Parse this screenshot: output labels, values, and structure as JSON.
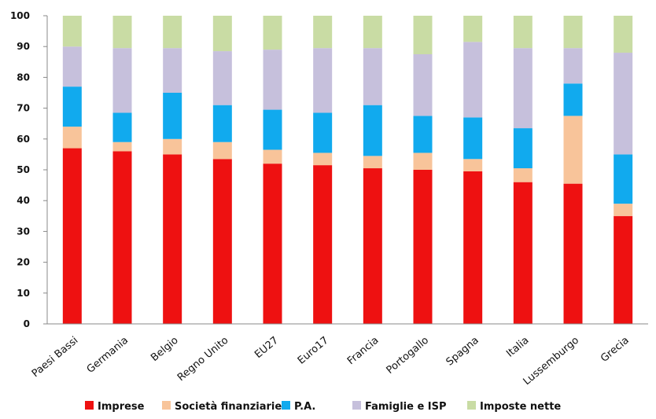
{
  "chart_data": {
    "type": "bar",
    "stacked": true,
    "ylim": [
      0,
      100
    ],
    "yticks": [
      0,
      10,
      20,
      30,
      40,
      50,
      60,
      70,
      80,
      90,
      100
    ],
    "grid": false,
    "legend_position": "bottom",
    "categories": [
      "Paesi Bassi",
      "Germania",
      "Belgio",
      "Regno Unito",
      "EU27",
      "Euro17",
      "Francia",
      "Portogallo",
      "Spagna",
      "Italia",
      "Lussemburgo",
      "Grecia"
    ],
    "series": [
      {
        "name": "Imprese",
        "color": "#ee1111",
        "values": [
          57,
          56,
          55,
          53.5,
          52,
          51.5,
          50.5,
          50,
          49.5,
          46,
          45.5,
          35
        ]
      },
      {
        "name": "Società finanziarie",
        "color": "#f8c49a",
        "values": [
          7,
          3,
          5,
          5.5,
          4.5,
          4,
          4,
          5.5,
          4,
          4.5,
          22,
          4
        ]
      },
      {
        "name": "P.A.",
        "color": "#11aaee",
        "values": [
          13,
          9.5,
          15,
          12,
          13,
          13,
          16.5,
          12,
          13.5,
          13,
          10.5,
          16
        ]
      },
      {
        "name": "Famiglie e ISP",
        "color": "#c6c0dc",
        "values": [
          13,
          21,
          14.5,
          17.5,
          19.5,
          21,
          18.5,
          20,
          24.5,
          26,
          11.5,
          33
        ]
      },
      {
        "name": "Imposte nette",
        "color": "#c9dca4",
        "values": [
          10,
          10.5,
          10.5,
          11.5,
          11,
          10.5,
          10.5,
          12.5,
          8.5,
          10.5,
          10.5,
          12
        ]
      }
    ]
  }
}
